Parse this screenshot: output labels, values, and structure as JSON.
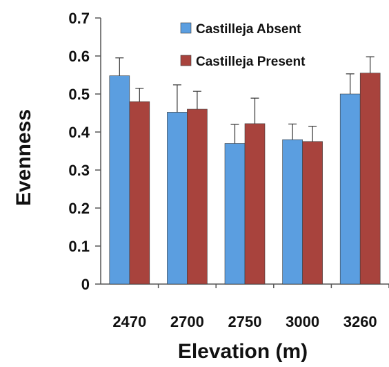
{
  "chart_data": {
    "type": "bar",
    "title": "",
    "xlabel": "Elevation (m)",
    "ylabel": "Evenness",
    "categories": [
      "2470",
      "2700",
      "2750",
      "3000",
      "3260"
    ],
    "ylim": [
      0,
      0.7
    ],
    "yticks": [
      "0",
      "0.1",
      "0.2",
      "0.3",
      "0.4",
      "0.5",
      "0.6",
      "0.7"
    ],
    "series": [
      {
        "name": "Castilleja Absent",
        "color": "#5b9ee0",
        "values": [
          0.548,
          0.452,
          0.37,
          0.38,
          0.5
        ],
        "errors": [
          0.047,
          0.072,
          0.05,
          0.041,
          0.053
        ]
      },
      {
        "name": "Castilleja Present",
        "color": "#a8433d",
        "values": [
          0.48,
          0.46,
          0.422,
          0.375,
          0.555
        ],
        "errors": [
          0.035,
          0.047,
          0.067,
          0.04,
          0.043
        ]
      }
    ],
    "legend": "top-right",
    "grid": false
  }
}
